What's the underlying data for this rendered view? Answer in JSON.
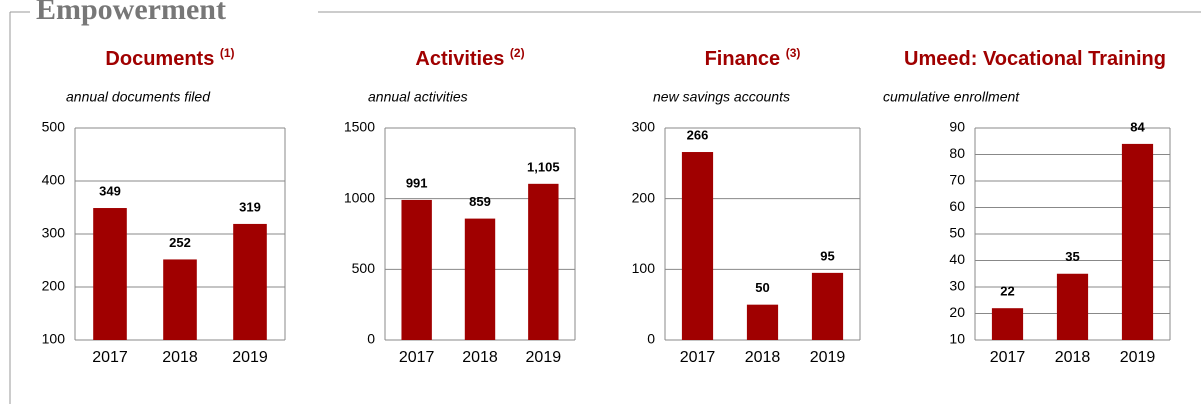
{
  "section_title": "Empowerment",
  "chart_data": [
    {
      "type": "bar",
      "title": "Documents",
      "title_note": "(1)",
      "subtitle": "annual documents filed",
      "categories": [
        "2017",
        "2018",
        "2019"
      ],
      "values": [
        349,
        252,
        319
      ],
      "color": "#a00000",
      "ylim": [
        100,
        500
      ],
      "yticks": [
        100,
        200,
        300,
        400,
        500
      ],
      "grid": true
    },
    {
      "type": "bar",
      "title": "Activities",
      "title_note": "(2)",
      "subtitle": "annual activities",
      "categories": [
        "2017",
        "2018",
        "2019"
      ],
      "values": [
        991,
        859,
        1105
      ],
      "value_labels": [
        "991",
        "859",
        "1,105"
      ],
      "color": "#a00000",
      "ylim": [
        0,
        1500
      ],
      "yticks": [
        0,
        500,
        1000,
        1500
      ],
      "grid": true
    },
    {
      "type": "bar",
      "title": "Finance",
      "title_note": "(3)",
      "subtitle": "new savings accounts",
      "categories": [
        "2017",
        "2018",
        "2019"
      ],
      "values": [
        266,
        50,
        95
      ],
      "color": "#a00000",
      "ylim": [
        0,
        300
      ],
      "yticks": [
        0,
        100,
        200,
        300
      ],
      "grid": true
    },
    {
      "type": "bar",
      "title": "Umeed: Vocational Training",
      "subtitle": "cumulative enrollment",
      "categories": [
        "2017",
        "2018",
        "2019"
      ],
      "values": [
        22,
        35,
        84
      ],
      "color": "#a00000",
      "ylim": [
        10,
        90
      ],
      "yticks": [
        10,
        20,
        30,
        40,
        50,
        60,
        70,
        80,
        90
      ],
      "grid": true
    }
  ]
}
